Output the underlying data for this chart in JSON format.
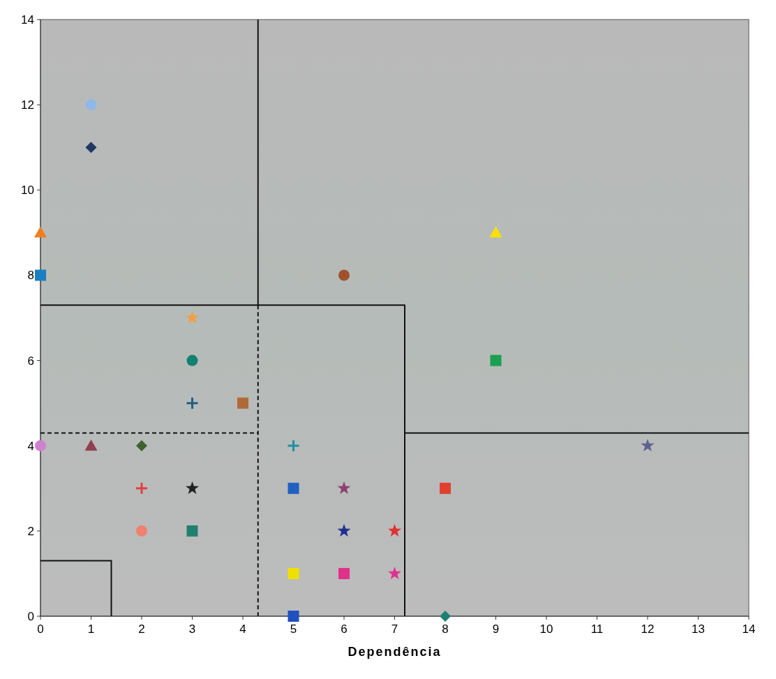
{
  "chart_data": {
    "type": "scatter",
    "xlabel": "Dependência",
    "xlim": [
      0,
      14
    ],
    "xticks": [
      0,
      1,
      2,
      3,
      4,
      5,
      6,
      7,
      8,
      9,
      10,
      11,
      12,
      13,
      14
    ],
    "ylim": [
      0,
      14
    ],
    "yticks": [
      0,
      2,
      4,
      6,
      8,
      10,
      12,
      14
    ],
    "grid": false,
    "series": [
      {
        "type": "line",
        "color": "#111111",
        "line_style": "solid",
        "marker": "none",
        "x": [
          4.3,
          4.3
        ],
        "values": [
          14,
          7.3
        ]
      },
      {
        "type": "line",
        "color": "#111111",
        "line_style": "dashed",
        "marker": "none",
        "x": [
          4.3,
          4.3
        ],
        "values": [
          7.3,
          0
        ]
      },
      {
        "type": "line",
        "color": "#111111",
        "line_style": "solid",
        "marker": "none",
        "x": [
          0,
          7.2,
          7.2
        ],
        "values": [
          7.3,
          7.3,
          0
        ]
      },
      {
        "type": "line",
        "color": "#111111",
        "line_style": "dashed",
        "marker": "none",
        "x": [
          0,
          4.3
        ],
        "values": [
          4.3,
          4.3
        ]
      },
      {
        "type": "line",
        "color": "#111111",
        "line_style": "solid",
        "marker": "none",
        "x": [
          7.2,
          14
        ],
        "values": [
          4.3,
          4.3
        ]
      },
      {
        "type": "line",
        "color": "#111111",
        "line_style": "solid",
        "marker": "none",
        "x": [
          0,
          1.4,
          1.4
        ],
        "values": [
          1.3,
          1.3,
          0
        ]
      },
      {
        "color": "#8fb8e8",
        "marker": "circle",
        "x": [
          1
        ],
        "values": [
          12
        ]
      },
      {
        "color": "#1f3864",
        "marker": "diamond",
        "x": [
          1
        ],
        "values": [
          11
        ]
      },
      {
        "color": "#f07f20",
        "marker": "triangle",
        "x": [
          0
        ],
        "values": [
          9
        ]
      },
      {
        "color": "#1a7fc0",
        "marker": "square",
        "x": [
          0
        ],
        "values": [
          8
        ]
      },
      {
        "color": "#ffe000",
        "marker": "triangle",
        "x": [
          9
        ],
        "values": [
          9
        ]
      },
      {
        "color": "#a0522d",
        "marker": "circle",
        "x": [
          6
        ],
        "values": [
          8
        ]
      },
      {
        "color": "#f0a040",
        "marker": "star",
        "x": [
          3
        ],
        "values": [
          7
        ]
      },
      {
        "color": "#138070",
        "marker": "circle",
        "x": [
          3
        ],
        "values": [
          6
        ]
      },
      {
        "color": "#1aa050",
        "marker": "square",
        "x": [
          9
        ],
        "values": [
          6
        ]
      },
      {
        "color": "#206080",
        "marker": "cross",
        "x": [
          3
        ],
        "values": [
          5
        ]
      },
      {
        "color": "#b06a3a",
        "marker": "square",
        "x": [
          4
        ],
        "values": [
          5
        ]
      },
      {
        "color": "#d080d0",
        "marker": "circle",
        "x": [
          0
        ],
        "values": [
          4
        ]
      },
      {
        "color": "#904050",
        "marker": "triangle",
        "x": [
          1
        ],
        "values": [
          4
        ]
      },
      {
        "color": "#406030",
        "marker": "diamond",
        "x": [
          2
        ],
        "values": [
          4
        ]
      },
      {
        "color": "#2090a0",
        "marker": "cross",
        "x": [
          5
        ],
        "values": [
          4
        ]
      },
      {
        "color": "#606090",
        "marker": "star",
        "x": [
          12
        ],
        "values": [
          4
        ]
      },
      {
        "color": "#e04040",
        "marker": "cross",
        "x": [
          2
        ],
        "values": [
          3
        ]
      },
      {
        "color": "#202020",
        "marker": "star",
        "x": [
          3
        ],
        "values": [
          3
        ]
      },
      {
        "color": "#2060c0",
        "marker": "square",
        "x": [
          5
        ],
        "values": [
          3
        ]
      },
      {
        "color": "#904070",
        "marker": "star",
        "x": [
          6
        ],
        "values": [
          3
        ]
      },
      {
        "color": "#e04030",
        "marker": "square",
        "x": [
          8
        ],
        "values": [
          3
        ]
      },
      {
        "color": "#f08070",
        "marker": "circle",
        "x": [
          2
        ],
        "values": [
          2
        ]
      },
      {
        "color": "#208070",
        "marker": "square",
        "x": [
          3
        ],
        "values": [
          2
        ]
      },
      {
        "color": "#203090",
        "marker": "star",
        "x": [
          6
        ],
        "values": [
          2
        ]
      },
      {
        "color": "#e03030",
        "marker": "star",
        "x": [
          7
        ],
        "values": [
          2
        ]
      },
      {
        "color": "#f0e000",
        "marker": "square",
        "x": [
          5
        ],
        "values": [
          1
        ]
      },
      {
        "color": "#e0308a",
        "marker": "square",
        "x": [
          6
        ],
        "values": [
          1
        ]
      },
      {
        "color": "#e03090",
        "marker": "star",
        "x": [
          7
        ],
        "values": [
          1
        ]
      },
      {
        "color": "#2050c0",
        "marker": "square",
        "x": [
          5
        ],
        "values": [
          0
        ]
      },
      {
        "color": "#208070",
        "marker": "diamond",
        "x": [
          8
        ],
        "values": [
          0
        ]
      }
    ]
  }
}
